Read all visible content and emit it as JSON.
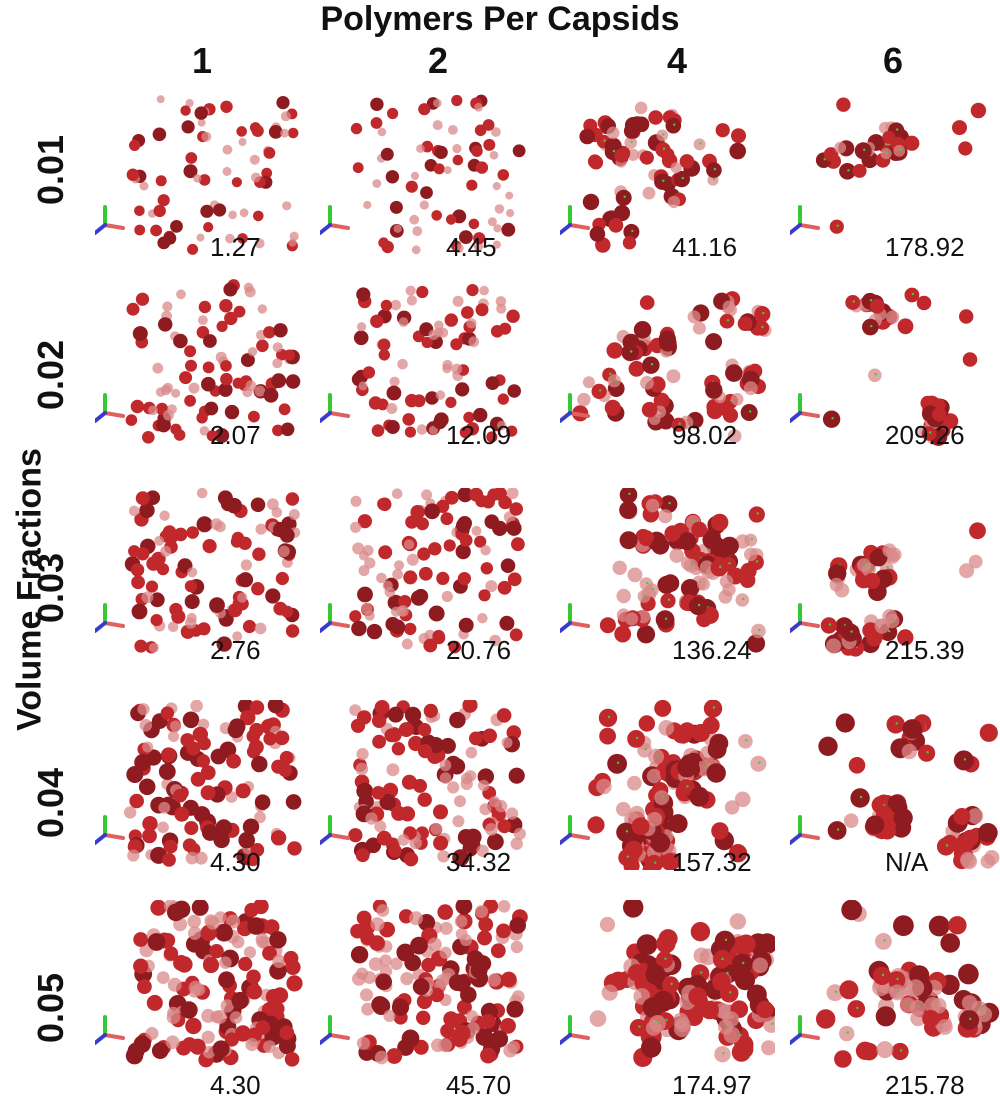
{
  "figure": {
    "top_title": "Polymers Per Capsids",
    "side_title": "Volume Fractions",
    "columns": [
      "1",
      "2",
      "4",
      "6"
    ],
    "rows": [
      {
        "label": "0.01",
        "values": [
          "1.27",
          "4.45",
          "41.16",
          "178.92"
        ]
      },
      {
        "label": "0.02",
        "values": [
          "2.07",
          "12.09",
          "98.02",
          "209.26"
        ]
      },
      {
        "label": "0.03",
        "values": [
          "2.76",
          "20.76",
          "136.24",
          "215.39"
        ]
      },
      {
        "label": "0.04",
        "values": [
          "4.30",
          "34.32",
          "157.32",
          "N/A"
        ]
      },
      {
        "label": "0.05",
        "values": [
          "4.30",
          "45.70",
          "174.97",
          "215.78"
        ]
      }
    ],
    "colors": {
      "capsid": "#c0282c",
      "capsid_light": "#d98a8a",
      "capsid_dark": "#8e1b1f",
      "axis_x": "#e06060",
      "axis_y": "#35c935",
      "axis_z": "#3a3acc"
    }
  }
}
